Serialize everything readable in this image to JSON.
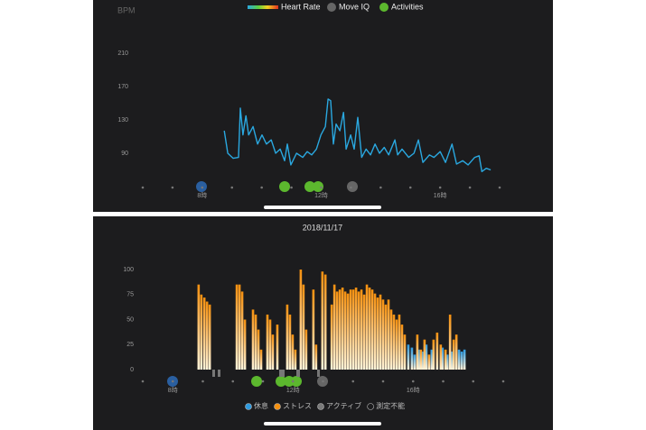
{
  "chart_data": [
    {
      "type": "line",
      "y_axis_label": "BPM",
      "xlim": [
        6,
        18
      ],
      "ylim": [
        50,
        210
      ],
      "xticks": [
        {
          "value": 8,
          "label": "8時"
        },
        {
          "value": 12,
          "label": "12時"
        },
        {
          "value": 16,
          "label": "16時"
        }
      ],
      "yticks": [
        90,
        130,
        170,
        210
      ],
      "series": [
        {
          "name": "Heart Rate",
          "color": "#2aa8e0",
          "x": [
            8.74,
            8.86,
            9.04,
            9.22,
            9.28,
            9.37,
            9.47,
            9.56,
            9.71,
            9.86,
            10.01,
            10.16,
            10.32,
            10.47,
            10.62,
            10.77,
            10.86,
            10.98,
            11.17,
            11.38,
            11.53,
            11.68,
            11.84,
            11.99,
            12.14,
            12.23,
            12.32,
            12.41,
            12.5,
            12.63,
            12.75,
            12.84,
            12.99,
            13.11,
            13.23,
            13.36,
            13.51,
            13.66,
            13.81,
            13.96,
            14.12,
            14.27,
            14.48,
            14.57,
            14.72,
            14.94,
            15.12,
            15.27,
            15.42,
            15.64,
            15.79,
            16.0,
            16.18,
            16.4,
            16.55,
            16.76,
            16.94,
            17.16,
            17.31,
            17.4,
            17.55,
            17.7
          ],
          "values": [
            117,
            90,
            84,
            85,
            144,
            112,
            135,
            112,
            122,
            101,
            112,
            101,
            106,
            90,
            95,
            81,
            101,
            76,
            90,
            85,
            92,
            88,
            95,
            112,
            122,
            155,
            153,
            101,
            125,
            117,
            139,
            95,
            112,
            95,
            133,
            85,
            95,
            88,
            101,
            90,
            97,
            88,
            106,
            88,
            95,
            85,
            90,
            106,
            79,
            88,
            85,
            92,
            79,
            101,
            77,
            81,
            76,
            85,
            87,
            68,
            72,
            70
          ]
        }
      ],
      "legend_extra": [
        {
          "name": "Move IQ",
          "color": "#666666"
        },
        {
          "name": "Activities",
          "color": "#5cb82e"
        }
      ]
    },
    {
      "type": "bar",
      "title": "2018/11/17",
      "xlim": [
        7,
        19
      ],
      "ylim": [
        0,
        100
      ],
      "xticks": [
        {
          "value": 8,
          "label": "8時"
        },
        {
          "value": 12,
          "label": "12時"
        },
        {
          "value": 16,
          "label": "16時"
        }
      ],
      "yticks": [
        0,
        25,
        50,
        75,
        100
      ],
      "series": [
        {
          "name": "休息",
          "color": "#2f9be0",
          "x": [
            15.84,
            15.96,
            16.05,
            16.2,
            16.32,
            16.44,
            16.62,
            16.98,
            17.14,
            17.29,
            17.53,
            17.62,
            17.71
          ],
          "values": [
            25,
            22,
            15,
            20,
            18,
            25,
            20,
            22,
            15,
            18,
            20,
            18,
            20
          ]
        },
        {
          "name": "ストレス",
          "color": "#f5900f",
          "x": [
            8.86,
            8.95,
            9.05,
            9.14,
            9.23,
            10.13,
            10.22,
            10.31,
            10.4,
            10.67,
            10.76,
            10.85,
            10.94,
            11.15,
            11.24,
            11.33,
            11.48,
            11.81,
            11.9,
            11.99,
            12.08,
            12.26,
            12.35,
            12.44,
            12.68,
            12.77,
            12.98,
            13.08,
            13.29,
            13.38,
            13.47,
            13.56,
            13.65,
            13.74,
            13.83,
            13.92,
            14.01,
            14.1,
            14.19,
            14.28,
            14.37,
            14.46,
            14.55,
            14.64,
            14.73,
            14.82,
            14.91,
            15.0,
            15.09,
            15.18,
            15.27,
            15.36,
            15.45,
            15.54,
            15.63,
            15.72,
            16.14,
            16.26,
            16.38,
            16.53,
            16.68,
            16.8,
            16.92,
            17.08,
            17.23,
            17.35,
            17.44
          ],
          "values": [
            85,
            75,
            72,
            68,
            65,
            85,
            85,
            78,
            50,
            60,
            55,
            40,
            20,
            55,
            50,
            35,
            45,
            65,
            55,
            35,
            20,
            100,
            85,
            40,
            80,
            25,
            98,
            95,
            65,
            85,
            78,
            80,
            82,
            78,
            76,
            80,
            80,
            82,
            78,
            80,
            75,
            85,
            82,
            80,
            76,
            72,
            75,
            70,
            65,
            70,
            60,
            55,
            50,
            55,
            45,
            35,
            35,
            20,
            30,
            15,
            30,
            37,
            25,
            20,
            55,
            30,
            35
          ]
        },
        {
          "name": "アクティブ",
          "color": "#7a7a7a",
          "x": [],
          "values": []
        },
        {
          "name": "測定不能",
          "color": "#1c1c1e",
          "x": [],
          "values": []
        }
      ]
    }
  ]
}
